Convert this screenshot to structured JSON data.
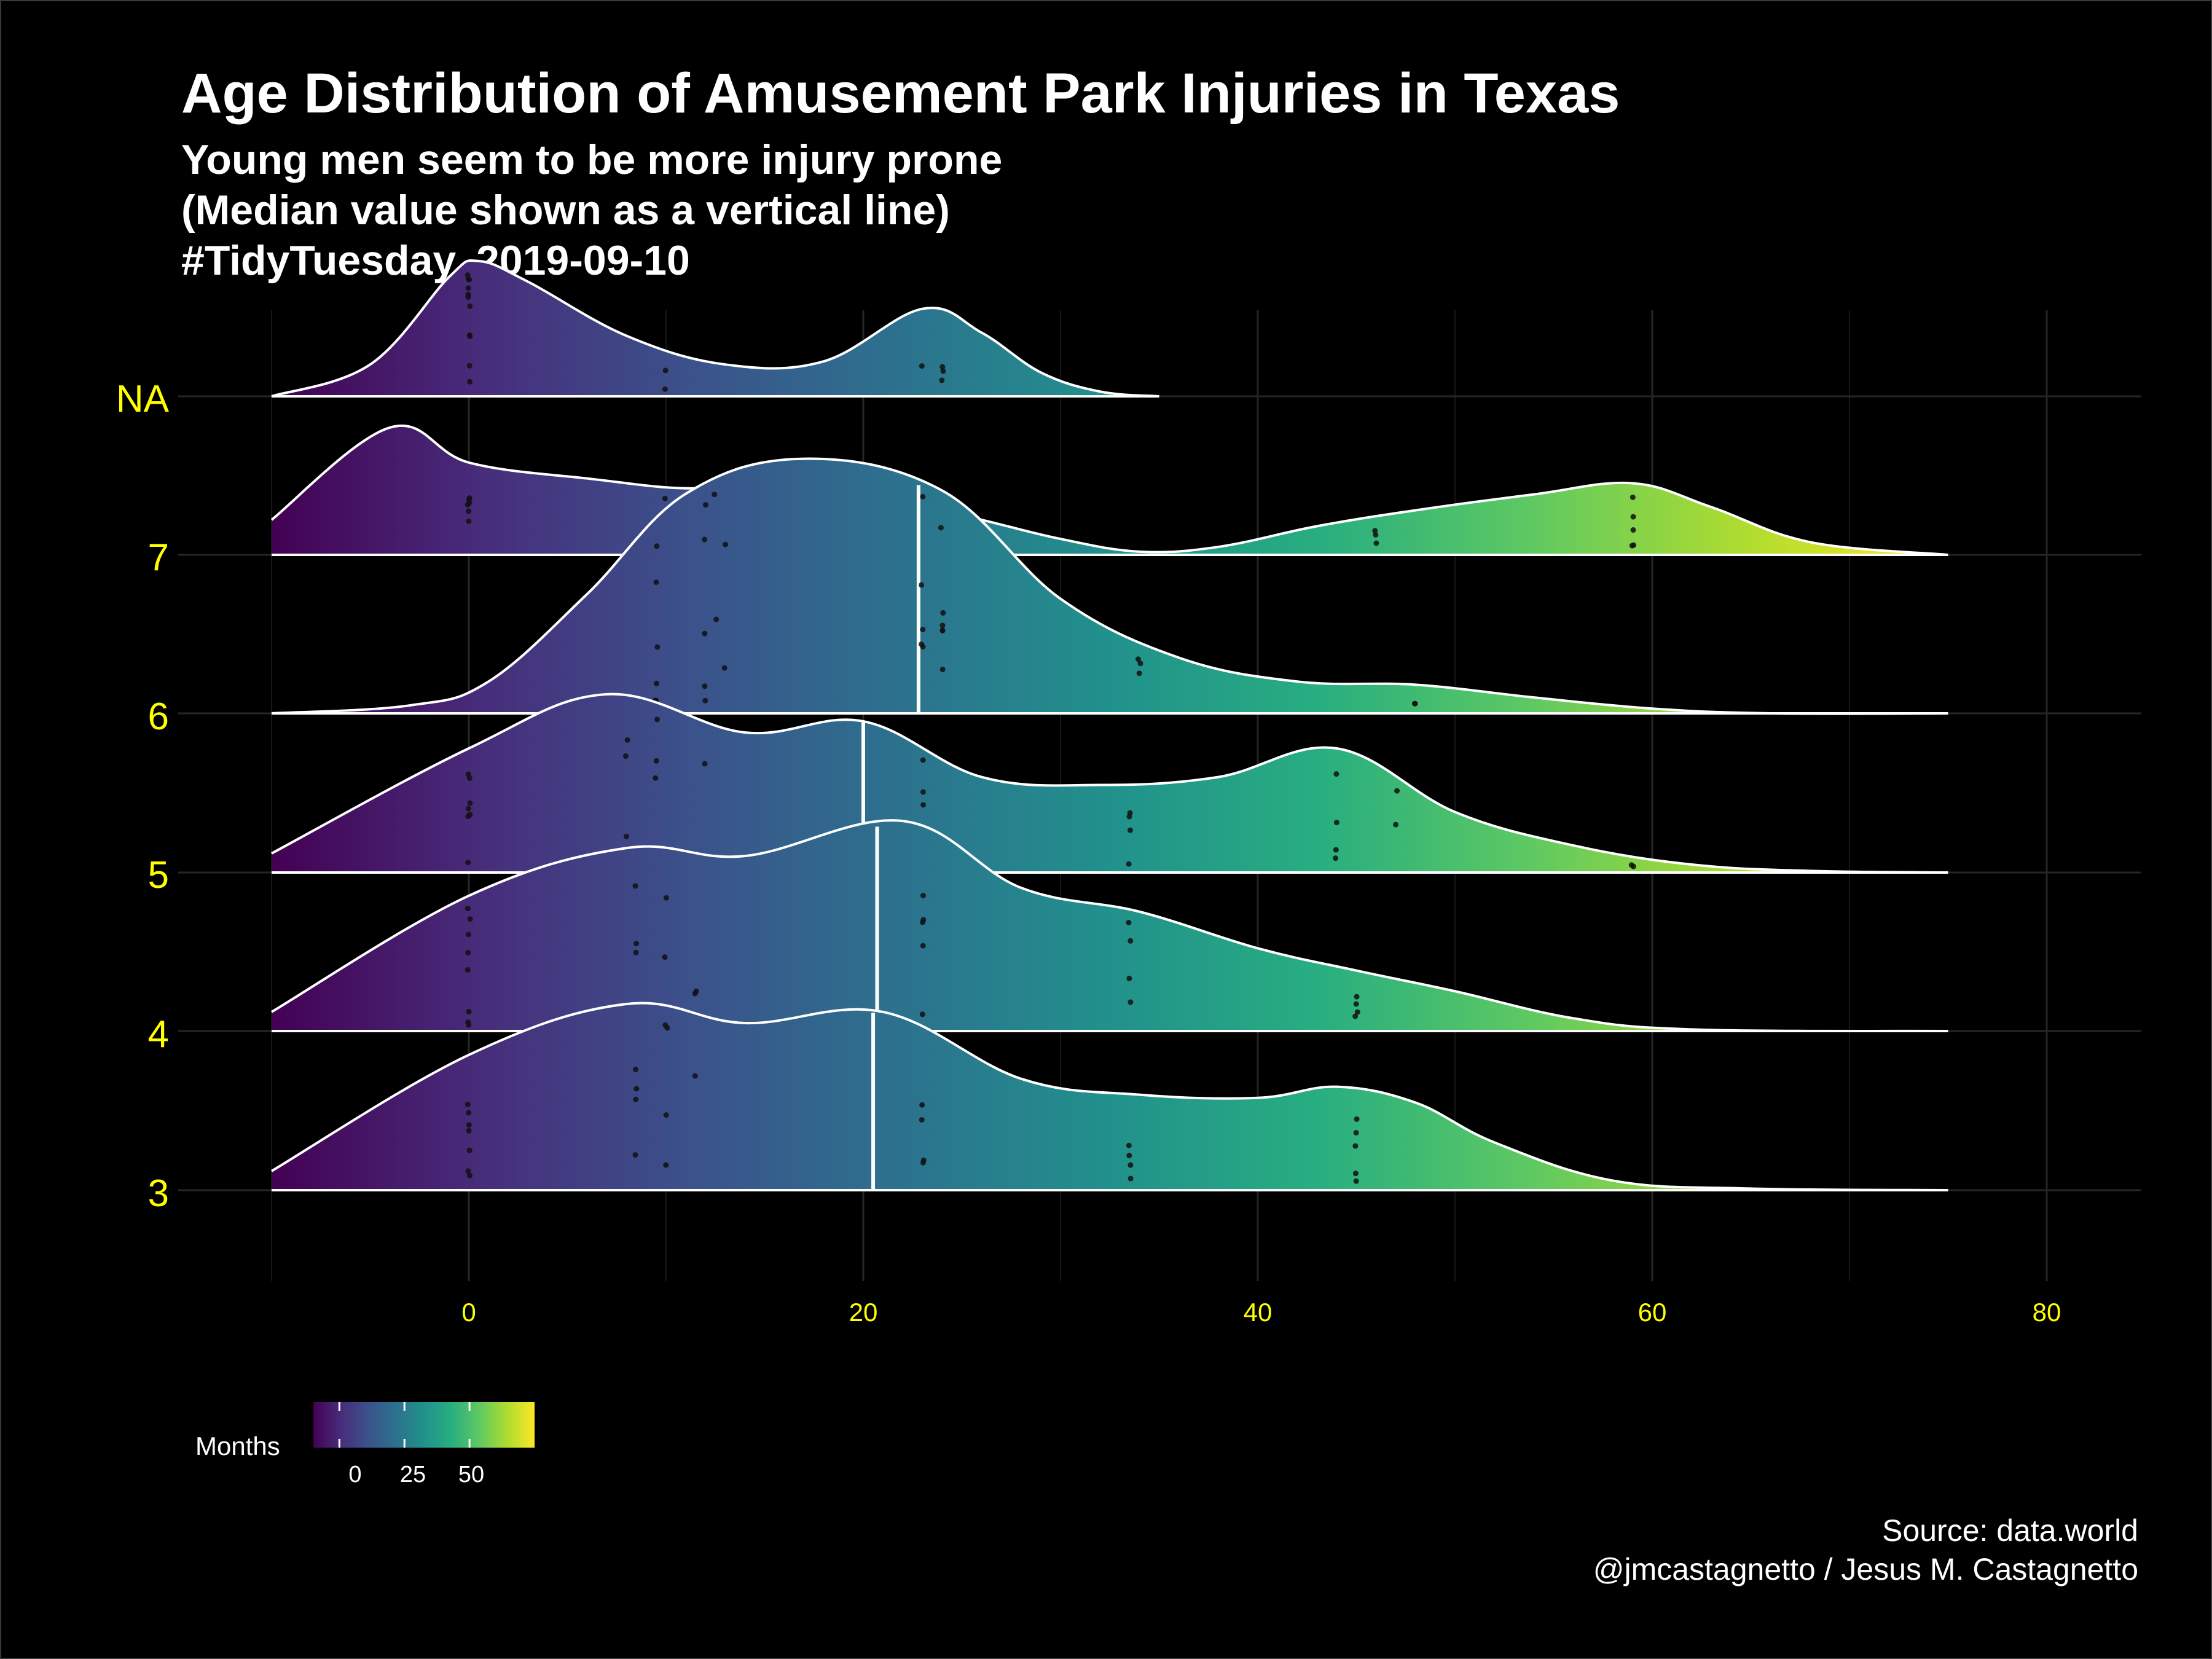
{
  "chart_data": {
    "type": "ridgeline",
    "title": "Age Distribution of Amusement Park Injuries in Texas",
    "subtitle": [
      "Young men seem to be more injury prone",
      "(Median value shown as a vertical line)",
      "#TidyTuesday, 2019-09-10"
    ],
    "xlabel": "",
    "ylabel": "",
    "xlim": [
      -10,
      75
    ],
    "x_ticks": [
      0,
      20,
      40,
      60,
      80
    ],
    "categories": [
      "3",
      "4",
      "5",
      "6",
      "7",
      "NA"
    ],
    "grid": true,
    "colorscale": "viridis",
    "series": [
      {
        "category": "3",
        "median": 20.5,
        "x": [
          -10,
          0,
          8,
          14,
          21,
          28,
          34,
          40,
          44,
          48,
          52,
          58,
          65,
          75
        ],
        "density": [
          0.12,
          0.85,
          1.17,
          1.05,
          1.12,
          0.7,
          0.6,
          0.58,
          0.65,
          0.55,
          0.3,
          0.06,
          0.01,
          0.0
        ],
        "points": [
          0,
          0,
          0,
          0,
          0,
          0,
          0,
          8.5,
          8.5,
          8.5,
          8.5,
          10,
          10,
          10,
          10,
          11.5,
          23,
          23,
          23,
          23,
          33.5,
          33.5,
          33.5,
          33.5,
          45,
          45,
          45,
          45,
          45
        ]
      },
      {
        "category": "4",
        "median": 20.7,
        "x": [
          -10,
          0,
          8,
          14,
          22,
          28,
          34,
          40,
          45,
          50,
          56,
          62,
          75
        ],
        "density": [
          0.12,
          0.85,
          1.15,
          1.1,
          1.32,
          0.9,
          0.75,
          0.52,
          0.38,
          0.25,
          0.08,
          0.01,
          0.0
        ],
        "points": [
          0,
          0,
          0,
          0,
          0,
          0,
          0,
          0,
          8.5,
          8.5,
          8.5,
          10,
          10,
          10,
          11.5,
          11.5,
          23,
          23,
          23,
          23,
          23,
          33.5,
          33.5,
          33.5,
          33.5,
          45,
          45,
          45,
          45
        ]
      },
      {
        "category": "5",
        "median": 20.0,
        "x": [
          -10,
          0,
          7,
          14,
          20,
          26,
          32,
          38,
          44,
          50,
          56,
          62,
          68,
          75
        ],
        "density": [
          0.12,
          0.78,
          1.12,
          0.88,
          0.95,
          0.6,
          0.55,
          0.6,
          0.78,
          0.38,
          0.17,
          0.05,
          0.01,
          0.0
        ],
        "points": [
          0,
          0,
          0,
          0,
          0,
          0,
          0,
          8,
          8,
          8,
          8,
          9.5,
          9.5,
          9.5,
          9.5,
          12,
          23,
          23,
          23,
          33.5,
          33.5,
          33.5,
          33.5,
          44,
          44,
          44,
          44,
          47,
          47,
          59,
          59
        ]
      },
      {
        "category": "6",
        "median": 22.8,
        "x": [
          -10,
          -3,
          1,
          6,
          11,
          17,
          24,
          30,
          36,
          42,
          48,
          54,
          60,
          66,
          75
        ],
        "density": [
          0.0,
          0.05,
          0.2,
          0.75,
          1.38,
          1.6,
          1.4,
          0.72,
          0.35,
          0.2,
          0.18,
          0.1,
          0.03,
          0.0,
          0.0
        ],
        "points": [
          9.5,
          9.5,
          9.5,
          9.5,
          9.5,
          9.5,
          12,
          12,
          12,
          12,
          12,
          12.5,
          12.5,
          13,
          13,
          23,
          23,
          23,
          23,
          23,
          24,
          24,
          24,
          24,
          24,
          24,
          34,
          34,
          34,
          48,
          48
        ]
      },
      {
        "category": "7",
        "median": 22.8,
        "x": [
          -10,
          -4,
          0,
          6,
          12,
          17,
          20,
          23,
          26,
          30,
          34,
          38,
          43,
          48,
          54,
          59,
          63,
          68,
          75
        ],
        "density": [
          0.22,
          0.8,
          0.58,
          0.48,
          0.42,
          0.55,
          0.5,
          0.3,
          0.22,
          0.1,
          0.02,
          0.05,
          0.18,
          0.28,
          0.38,
          0.45,
          0.3,
          0.08,
          0.0
        ],
        "points": [
          0,
          0,
          0,
          0,
          0,
          0,
          10,
          10,
          12.5,
          12.5,
          12.5,
          23,
          23,
          23,
          24,
          24,
          24,
          24,
          46,
          46,
          46,
          59,
          59,
          59,
          59,
          59
        ]
      },
      {
        "category": "NA",
        "median": null,
        "x": [
          -10,
          -5,
          -1,
          0.5,
          3,
          8,
          13,
          18,
          23,
          26,
          29,
          32,
          35
        ],
        "density": [
          0.0,
          0.2,
          0.75,
          0.85,
          0.72,
          0.38,
          0.2,
          0.22,
          0.55,
          0.4,
          0.15,
          0.03,
          0.0
        ],
        "points": [
          0,
          0,
          0,
          0,
          0,
          0,
          0,
          0,
          0,
          0,
          0,
          10,
          10,
          23,
          24,
          24,
          24
        ]
      }
    ],
    "legend": {
      "title": "Months",
      "ticks": [
        "0",
        "25",
        "50"
      ],
      "tick_values": [
        0,
        25,
        50
      ],
      "range": [
        -10,
        75
      ]
    }
  },
  "caption": {
    "source": "Source: data.world",
    "author": "@jmcastagnetto / Jesus M. Castagnetto"
  },
  "colors": {
    "background": "#000000",
    "grid": "#262626",
    "tick_labels": "#ffff00",
    "text": "#ffffff",
    "outline": "#ffffff"
  }
}
